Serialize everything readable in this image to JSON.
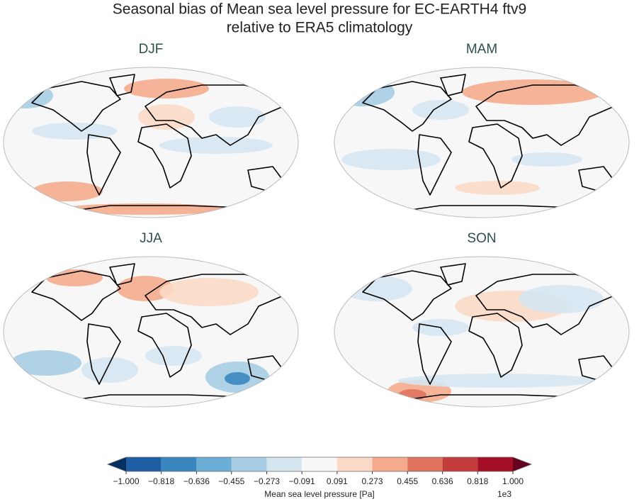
{
  "header": {
    "title_lines": [
      "Seasonal bias of Mean sea level pressure for EC-EARTH4 ftv9",
      "relative to ERA5 climatology"
    ]
  },
  "panels": [
    "DJF",
    "MAM",
    "JJA",
    "SON"
  ],
  "colorbar": {
    "ticks": [
      {
        "value": -1.0,
        "label": "−1.000"
      },
      {
        "value": -0.818,
        "label": "−0.818"
      },
      {
        "value": -0.636,
        "label": "−0.636"
      },
      {
        "value": -0.455,
        "label": "−0.455"
      },
      {
        "value": -0.273,
        "label": "−0.273"
      },
      {
        "value": -0.091,
        "label": "−0.091"
      },
      {
        "value": 0.091,
        "label": "0.091"
      },
      {
        "value": 0.273,
        "label": "0.273"
      },
      {
        "value": 0.455,
        "label": "0.455"
      },
      {
        "value": 0.636,
        "label": "0.636"
      },
      {
        "value": 0.818,
        "label": "0.818"
      },
      {
        "value": 1.0,
        "label": "1.000"
      }
    ],
    "lim": [
      -1.0,
      1.0
    ],
    "colors": [
      "#1f5fa6",
      "#3a87c0",
      "#6aaed6",
      "#a6cde3",
      "#d5e6f1",
      "#f7f7f7",
      "#fbd9c7",
      "#f4ab8c",
      "#e0745f",
      "#c43c3c",
      "#a50f26"
    ],
    "under_color": "#053061",
    "over_color": "#67001f",
    "label": "Mean sea level pressure [Pa]",
    "offset_text": "1e3"
  }
}
